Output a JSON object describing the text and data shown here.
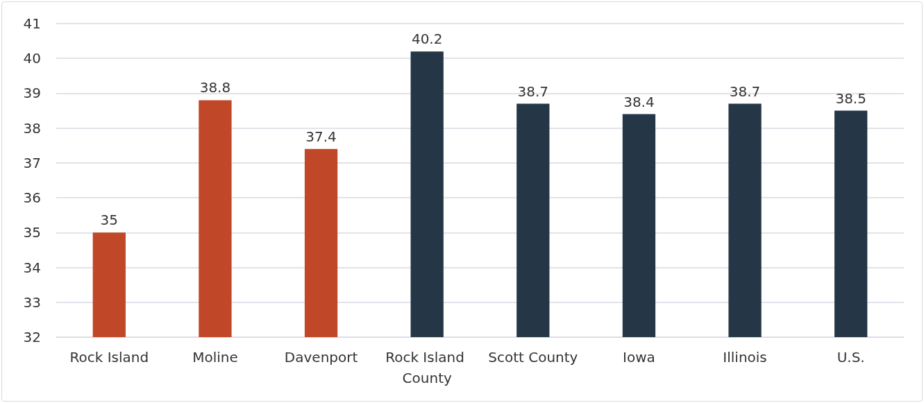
{
  "chart_data": {
    "type": "bar",
    "categories": [
      "Rock Island",
      "Moline",
      "Davenport",
      "Rock Island County",
      "Scott County",
      "Iowa",
      "Illinois",
      "U.S."
    ],
    "values": [
      35,
      38.8,
      37.4,
      40.2,
      38.7,
      38.4,
      38.7,
      38.5
    ],
    "colors": [
      "#c04828",
      "#c04828",
      "#c04828",
      "#253646",
      "#253646",
      "#253646",
      "#253646",
      "#253646"
    ],
    "ylim": [
      32,
      41
    ],
    "yticks": [
      32,
      33,
      34,
      35,
      36,
      37,
      38,
      39,
      40,
      41
    ],
    "grid": "y",
    "data_labels": true
  }
}
